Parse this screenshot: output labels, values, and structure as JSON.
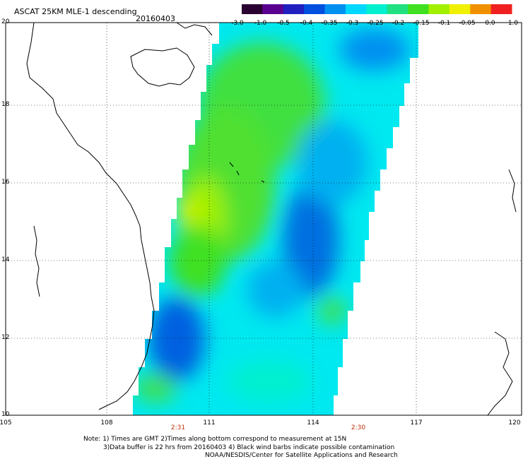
{
  "title": "ASCAT 25KM MLE-1 descending",
  "date": "20160403",
  "colorbar": {
    "labels": [
      "-3.0",
      "-1.0",
      "-0.5",
      "-0.4",
      "-0.35",
      "-0.3",
      "-0.25",
      "-0.2",
      "-0.15",
      "-0.1",
      "-0.05",
      "0.0",
      "1.0"
    ],
    "colors": [
      "#2a0030",
      "#5a0090",
      "#2020c0",
      "#0050e0",
      "#0090f0",
      "#00d8ff",
      "#00f0d0",
      "#20e080",
      "#40e020",
      "#a0f000",
      "#f0f000",
      "#f09000",
      "#f02020"
    ]
  },
  "lat_labels": [
    "20",
    "18",
    "16",
    "14",
    "12",
    "10"
  ],
  "lon_labels": [
    "105",
    "108",
    "111",
    "114",
    "117",
    "120"
  ],
  "times": [
    "2:31",
    "2:30"
  ],
  "notes": [
    "Note: 1) Times are GMT 2)Times along bottom correspond to measurement at 15N",
    "3)Data buffer is 22 hrs from 20160403 4) Black wind barbs indicate possible contamination",
    "NOAA/NESDIS/Center for Satellite Applications and Research"
  ]
}
